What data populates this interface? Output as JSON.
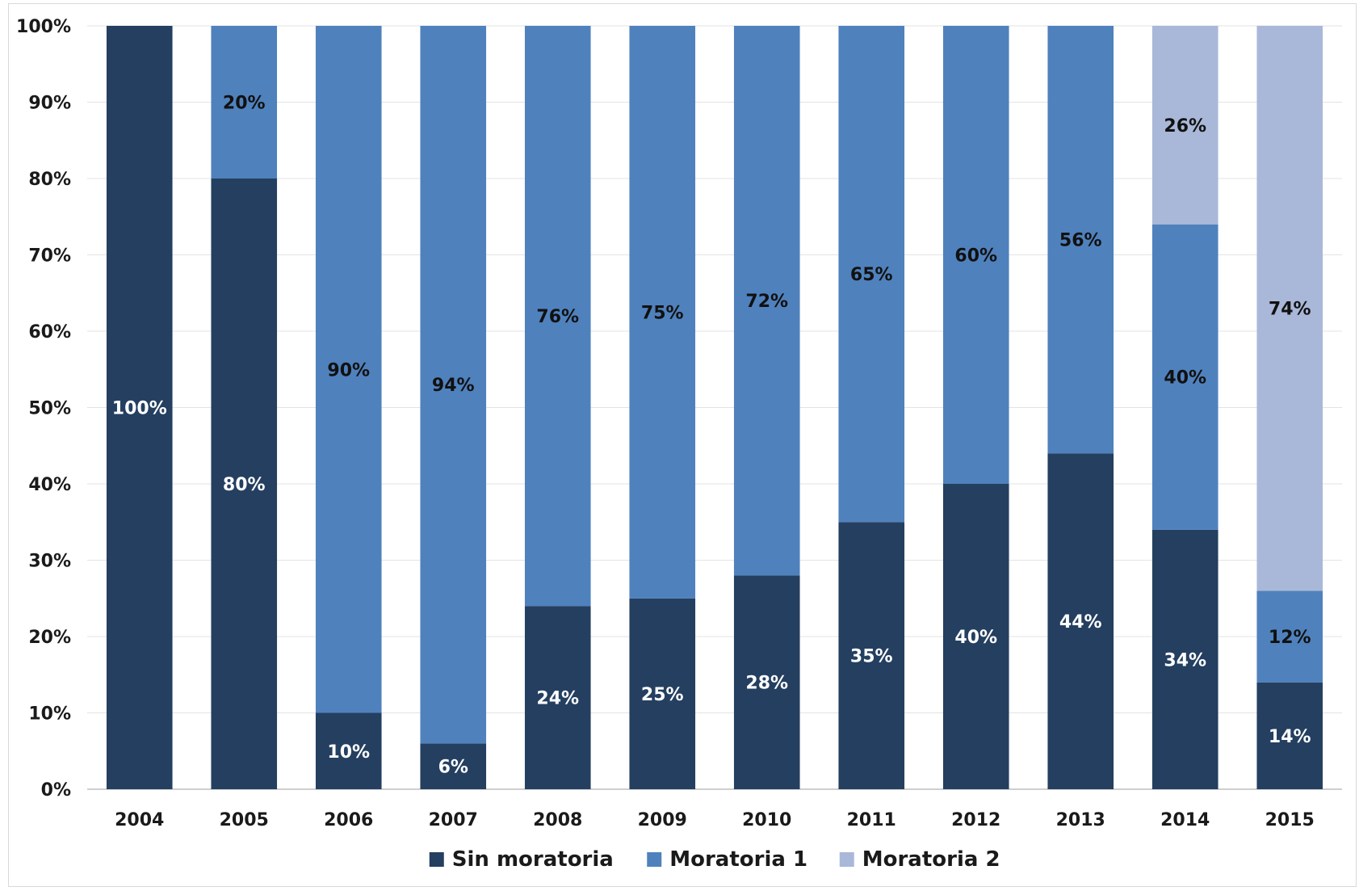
{
  "chart_data": {
    "type": "bar",
    "stacked": true,
    "categories": [
      "2004",
      "2005",
      "2006",
      "2007",
      "2008",
      "2009",
      "2010",
      "2011",
      "2012",
      "2013",
      "2014",
      "2015"
    ],
    "series": [
      {
        "name": "Sin moratoria",
        "color": "#243f60",
        "label_color": "#ffffff",
        "values": [
          100,
          80,
          10,
          6,
          24,
          25,
          28,
          35,
          40,
          44,
          34,
          14
        ],
        "labels": [
          "100%",
          "80%",
          "10%",
          "6%",
          "24%",
          "25%",
          "28%",
          "35%",
          "40%",
          "44%",
          "34%",
          "14%"
        ]
      },
      {
        "name": "Moratoria 1",
        "color": "#4f81bd",
        "label_color": "#111111",
        "values": [
          0,
          20,
          90,
          94,
          76,
          75,
          72,
          65,
          60,
          56,
          40,
          12
        ],
        "labels": [
          "",
          "20%",
          "90%",
          "94%",
          "76%",
          "75%",
          "72%",
          "65%",
          "60%",
          "56%",
          "40%",
          "12%"
        ]
      },
      {
        "name": "Moratoria 2",
        "color": "#a9b8d8",
        "label_color": "#111111",
        "values": [
          0,
          0,
          0,
          0,
          0,
          0,
          0,
          0,
          0,
          0,
          26,
          74
        ],
        "labels": [
          "",
          "",
          "",
          "",
          "",
          "",
          "",
          "",
          "",
          "",
          "26%",
          "74%"
        ]
      }
    ],
    "y_ticks": [
      "0%",
      "10%",
      "20%",
      "30%",
      "40%",
      "50%",
      "60%",
      "70%",
      "80%",
      "90%",
      "100%"
    ],
    "ylim": [
      0,
      100
    ],
    "grid": true,
    "legend_position": "bottom"
  }
}
